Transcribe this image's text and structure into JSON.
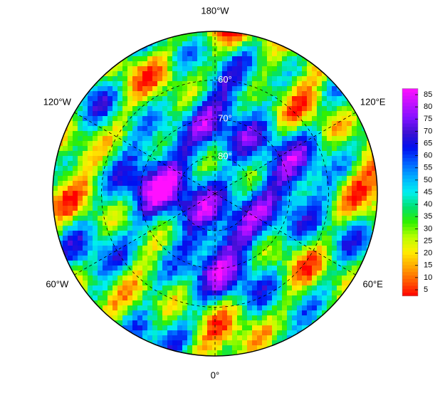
{
  "map": {
    "longitude_labels": [
      {
        "value": 180,
        "label": "180°W"
      },
      {
        "value": -120,
        "label": "120°W"
      },
      {
        "value": 120,
        "label": "120°E"
      },
      {
        "value": -60,
        "label": "60°W"
      },
      {
        "value": 60,
        "label": "60°E"
      },
      {
        "value": 0,
        "label": "0°"
      }
    ],
    "latitude_labels": [
      {
        "value": 80,
        "label": "80°"
      },
      {
        "value": 70,
        "label": "70°"
      },
      {
        "value": 60,
        "label": "60°"
      }
    ]
  },
  "colorbar": {
    "ticks": [
      5,
      10,
      15,
      20,
      25,
      30,
      35,
      40,
      45,
      50,
      55,
      60,
      65,
      70,
      75,
      80,
      85
    ],
    "colors": [
      "#ff0000",
      "#ff5a00",
      "#ffa800",
      "#ffee00",
      "#b8ff00",
      "#30f000",
      "#00e070",
      "#00f0f0",
      "#00b0ff",
      "#0060ff",
      "#0010f0",
      "#3a10d0",
      "#8010ff",
      "#c010ff",
      "#ff10ff"
    ]
  }
}
